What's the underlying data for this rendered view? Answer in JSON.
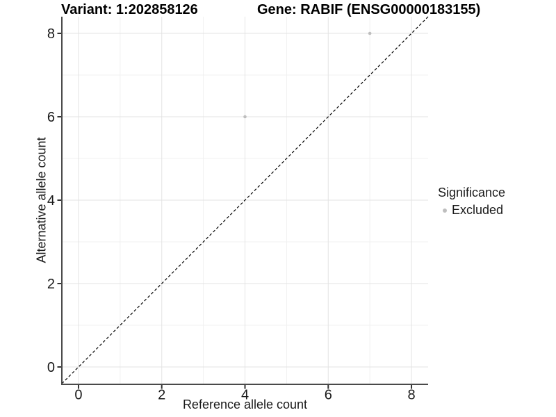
{
  "chart_data": {
    "type": "scatter",
    "title_left": "Variant: 1:202858126",
    "title_right": "Gene: RABIF (ENSG00000183155)",
    "xlabel": "Reference allele count",
    "ylabel": "Alternative allele count",
    "xlim": [
      -0.4,
      8.4
    ],
    "ylim": [
      -0.4,
      8.4
    ],
    "x_ticks": [
      0,
      2,
      4,
      6,
      8
    ],
    "y_ticks": [
      0,
      2,
      4,
      6,
      8
    ],
    "x_minor_ticks": [
      1,
      3,
      5,
      7
    ],
    "y_minor_ticks": [
      1,
      3,
      5,
      7
    ],
    "grid": "on",
    "identity_line": {
      "style": "dashed",
      "from_xy": [
        -0.4,
        -0.4
      ],
      "to_xy": [
        8.4,
        8.4
      ],
      "color": "#000000"
    },
    "series": [
      {
        "name": "Excluded",
        "color": "#bebebe",
        "points": [
          {
            "x": 4,
            "y": 6
          },
          {
            "x": 7,
            "y": 8
          }
        ]
      }
    ],
    "legend": {
      "title": "Significance",
      "position": "right",
      "items": [
        {
          "label": "Excluded",
          "color": "#bebebe"
        }
      ]
    },
    "colors": {
      "background": "#ffffff",
      "grid_major": "#e3e3e3",
      "grid_minor": "#f0f0f0",
      "axis_line": "#4a4a4a",
      "tick_mark": "#333333",
      "tick_text": "#1a1a1a",
      "title_text": "#000000"
    }
  }
}
